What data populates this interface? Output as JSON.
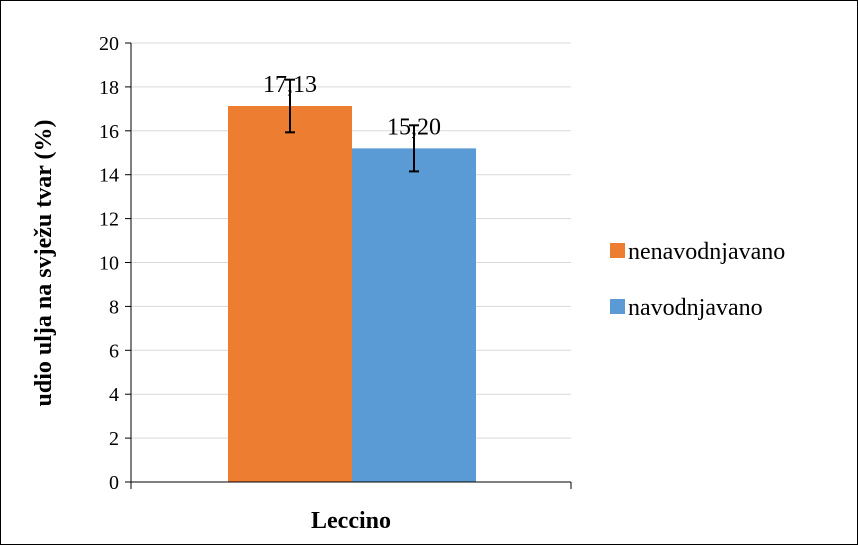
{
  "chart_data": {
    "type": "bar",
    "categories": [
      "Leccino"
    ],
    "series": [
      {
        "name": "nenavodnjavano",
        "color": "#ED7D31",
        "values": [
          17.13
        ],
        "labels": [
          "17,13"
        ],
        "error": [
          1.2
        ]
      },
      {
        "name": "navodnjavano",
        "color": "#5B9BD5",
        "values": [
          15.2
        ],
        "labels": [
          "15,20"
        ],
        "error": [
          1.05
        ]
      }
    ],
    "xlabel": "Leccino",
    "ylabel": "udio ulja na svježu tvar (%)",
    "ylim": [
      0,
      20
    ],
    "yticks": [
      0,
      2,
      4,
      6,
      8,
      10,
      12,
      14,
      16,
      18,
      20
    ],
    "grid": true,
    "legend_position": "right"
  }
}
